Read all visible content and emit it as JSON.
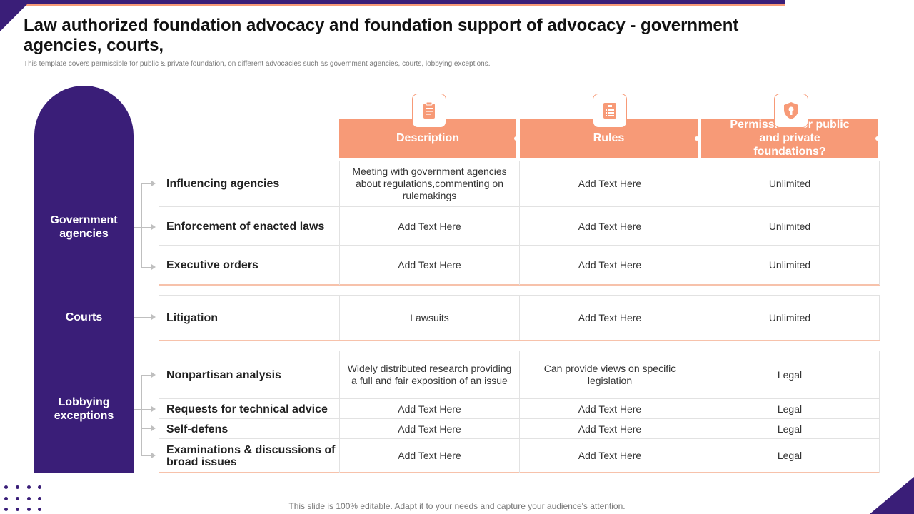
{
  "title": "Law authorized foundation advocacy and foundation support of advocacy - government agencies, courts,",
  "subtitle": "This template covers permissible for public & private foundation, on different advocacies such as government agencies, courts, lobbying exceptions.",
  "colors": {
    "purple": "#3a1e78",
    "orange": "#f79a77"
  },
  "categories": {
    "government": "Government agencies",
    "courts": "Courts",
    "lobbying": "Lobbying exceptions"
  },
  "columns": {
    "description": {
      "label": "Description",
      "icon": "clipboard-icon"
    },
    "rules": {
      "label": "Rules",
      "icon": "list-document-icon"
    },
    "permissible": {
      "label": "Permissible for public and private foundations?",
      "icon": "shield-lock-icon"
    }
  },
  "rows": {
    "government": [
      {
        "label": "Influencing agencies",
        "description": "Meeting with government agencies about regulations,commenting on rulemakings",
        "rules": "Add Text Here",
        "permissible": "Unlimited"
      },
      {
        "label": "Enforcement of enacted laws",
        "description": "Add Text Here",
        "rules": "Add Text Here",
        "permissible": "Unlimited"
      },
      {
        "label": "Executive orders",
        "description": "Add Text Here",
        "rules": "Add Text Here",
        "permissible": "Unlimited"
      }
    ],
    "courts": [
      {
        "label": "Litigation",
        "description": "Lawsuits",
        "rules": "Add Text Here",
        "permissible": "Unlimited"
      }
    ],
    "lobbying": [
      {
        "label": "Nonpartisan analysis",
        "description": "Widely distributed research providing a full and fair exposition of an issue",
        "rules": "Can provide views on specific legislation",
        "permissible": "Legal"
      },
      {
        "label": "Requests for technical advice",
        "description": "Add Text Here",
        "rules": "Add Text Here",
        "permissible": "Legal"
      },
      {
        "label": "Self-defens",
        "description": "Add Text Here",
        "rules": "Add Text Here",
        "permissible": "Legal"
      },
      {
        "label": "Examinations & discussions of broad issues",
        "description": "Add Text Here",
        "rules": "Add Text Here",
        "permissible": "Legal"
      }
    ]
  },
  "footer": "This slide is 100% editable. Adapt it to your needs and capture your audience's attention."
}
